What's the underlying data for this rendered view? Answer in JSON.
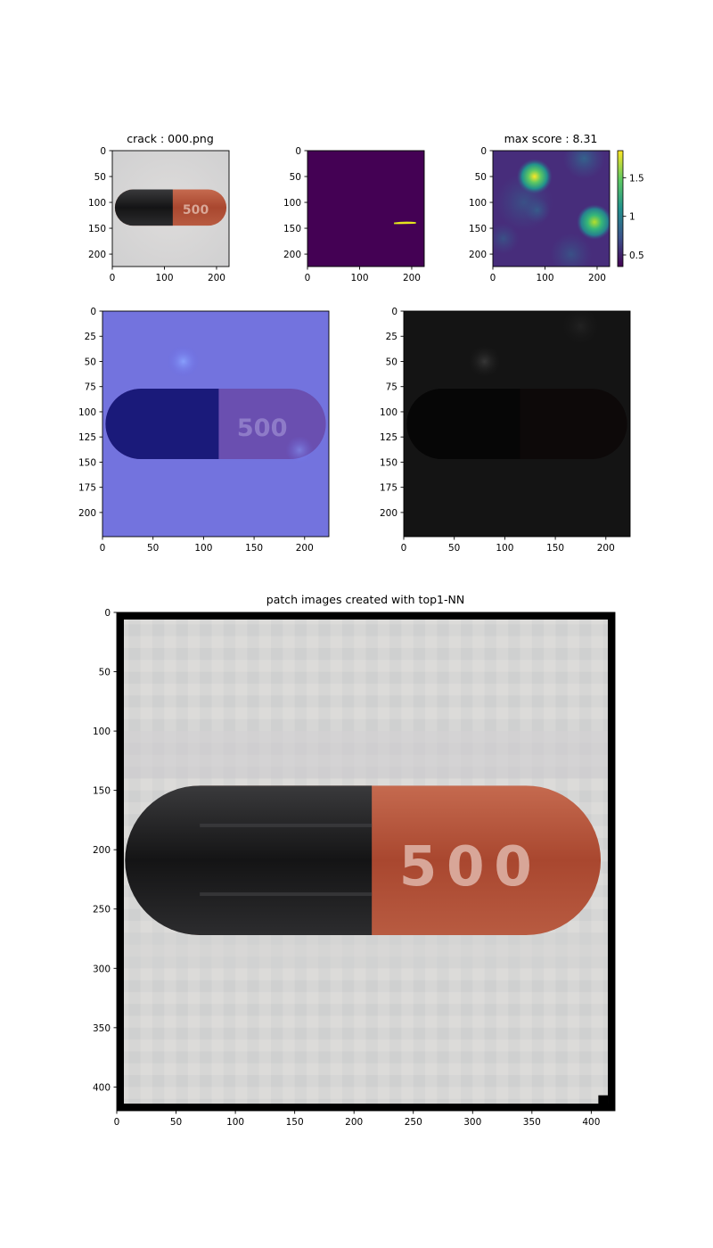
{
  "figure": {
    "panels": [
      {
        "id": "input",
        "title": "crack : 000.png",
        "image": "input-capsule",
        "xticks": [
          0,
          100,
          200
        ],
        "yticks": [
          0,
          50,
          100,
          150,
          200
        ],
        "xlim": [
          0,
          224
        ],
        "ylim": [
          224,
          0
        ]
      },
      {
        "id": "mask",
        "title": "",
        "image": "ground-truth-mask",
        "xticks": [
          0,
          100,
          200
        ],
        "yticks": [
          0,
          50,
          100,
          150,
          200
        ],
        "xlim": [
          0,
          224
        ],
        "ylim": [
          224,
          0
        ]
      },
      {
        "id": "score",
        "title": "max score : 8.31",
        "image": "anomaly-score-map",
        "xticks": [
          0,
          100,
          200
        ],
        "yticks": [
          0,
          50,
          100,
          150,
          200
        ],
        "xlim": [
          0,
          224
        ],
        "ylim": [
          224,
          0
        ],
        "colorbar": {
          "colormap": "viridis",
          "ticks": [
            0.5,
            1.0,
            1.5
          ],
          "range": [
            0.35,
            1.85
          ]
        }
      },
      {
        "id": "overlay",
        "title": "",
        "image": "heatmap-overlay",
        "xticks": [
          0,
          50,
          100,
          150,
          200
        ],
        "yticks": [
          0,
          25,
          50,
          75,
          100,
          125,
          150,
          175,
          200
        ],
        "xlim": [
          0,
          224
        ],
        "ylim": [
          224,
          0
        ]
      },
      {
        "id": "masked",
        "title": "",
        "image": "score-weighted-image",
        "xticks": [
          0,
          50,
          100,
          150,
          200
        ],
        "yticks": [
          0,
          25,
          50,
          75,
          100,
          125,
          150,
          175,
          200
        ],
        "xlim": [
          0,
          224
        ],
        "ylim": [
          224,
          0
        ]
      },
      {
        "id": "patches",
        "title": "patch images created with top1-NN",
        "image": "top1-nn-patch-mosaic",
        "xticks": [
          0,
          50,
          100,
          150,
          200,
          250,
          300,
          350,
          400
        ],
        "yticks": [
          0,
          50,
          100,
          150,
          200,
          250,
          300,
          350,
          400
        ],
        "xlim": [
          0,
          420
        ],
        "ylim": [
          420,
          0
        ]
      }
    ],
    "capsule_label": "500",
    "colors": {
      "capsule_dark": "#1c1c1e",
      "capsule_red": "#b6553d",
      "background_gray": "#d9d9d8",
      "mask_purple": "#440154",
      "mask_yellow": "#fde725"
    }
  },
  "chart_data": [
    {
      "type": "heatmap",
      "title": "crack : 000.png",
      "xlabel": "",
      "ylabel": "",
      "xlim": [
        0,
        224
      ],
      "ylim": [
        224,
        0
      ],
      "xticks": [
        0,
        100,
        200
      ],
      "yticks": [
        0,
        50,
        100,
        150,
        200
      ],
      "content": "input image of capsule printed 500"
    },
    {
      "type": "heatmap",
      "title": "",
      "xlim": [
        0,
        224
      ],
      "ylim": [
        224,
        0
      ],
      "xticks": [
        0,
        100,
        200
      ],
      "yticks": [
        0,
        50,
        100,
        150,
        200
      ],
      "content": "binary ground-truth mask",
      "defect_region": {
        "x": [
          165,
          210
        ],
        "y": [
          136,
          142
        ]
      }
    },
    {
      "type": "heatmap",
      "title": "max score : 8.31",
      "xlim": [
        0,
        224
      ],
      "ylim": [
        224,
        0
      ],
      "xticks": [
        0,
        100,
        200
      ],
      "yticks": [
        0,
        50,
        100,
        150,
        200
      ],
      "colormap": "viridis",
      "colorbar_range": [
        0.35,
        1.85
      ],
      "colorbar_ticks": [
        0.5,
        1.0,
        1.5
      ],
      "hotspots": [
        {
          "x": 80,
          "y": 50,
          "value": 1.85
        },
        {
          "x": 195,
          "y": 138,
          "value": 1.6
        },
        {
          "x": 175,
          "y": 15,
          "value": 0.9
        }
      ]
    },
    {
      "type": "heatmap",
      "title": "",
      "xlim": [
        0,
        224
      ],
      "ylim": [
        224,
        0
      ],
      "xticks": [
        0,
        50,
        100,
        150,
        200
      ],
      "yticks": [
        0,
        25,
        50,
        75,
        100,
        125,
        150,
        175,
        200
      ],
      "content": "score heatmap overlay"
    },
    {
      "type": "heatmap",
      "title": "",
      "xlim": [
        0,
        224
      ],
      "ylim": [
        224,
        0
      ],
      "xticks": [
        0,
        50,
        100,
        150,
        200
      ],
      "yticks": [
        0,
        25,
        50,
        75,
        100,
        125,
        150,
        175,
        200
      ],
      "content": "score-weighted image"
    },
    {
      "type": "heatmap",
      "title": "patch images created with top1-NN",
      "xlim": [
        0,
        420
      ],
      "ylim": [
        420,
        0
      ],
      "xticks": [
        0,
        50,
        100,
        150,
        200,
        250,
        300,
        350,
        400
      ],
      "yticks": [
        0,
        50,
        100,
        150,
        200,
        250,
        300,
        350,
        400
      ],
      "content": "reconstructed capsule from nearest-neighbor patches"
    }
  ]
}
